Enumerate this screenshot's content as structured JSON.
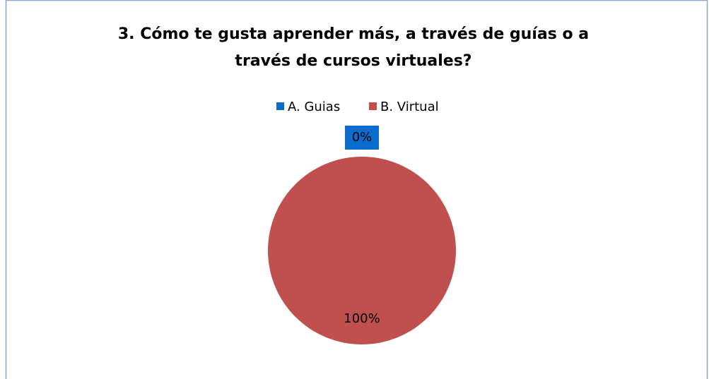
{
  "chart_data": {
    "type": "pie",
    "title": "3. Cómo te gusta aprender más, a través de guías o a través de cursos virtuales?",
    "categories": [
      "A. Guias",
      "B. Virtual"
    ],
    "values": [
      0,
      100
    ],
    "value_labels": [
      "0%",
      "100%"
    ],
    "colors": [
      "#0a6ccc",
      "#c0504d"
    ],
    "legend": "top"
  }
}
